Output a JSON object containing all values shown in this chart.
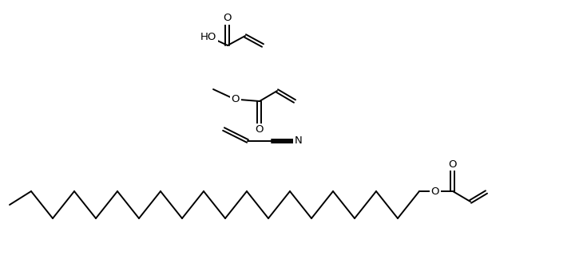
{
  "bg_color": "#ffffff",
  "line_color": "#000000",
  "line_width": 1.4,
  "figsize": [
    7.35,
    3.25
  ],
  "dpi": 100,
  "ylim": [
    0,
    325
  ],
  "xlim": [
    0,
    735
  ]
}
